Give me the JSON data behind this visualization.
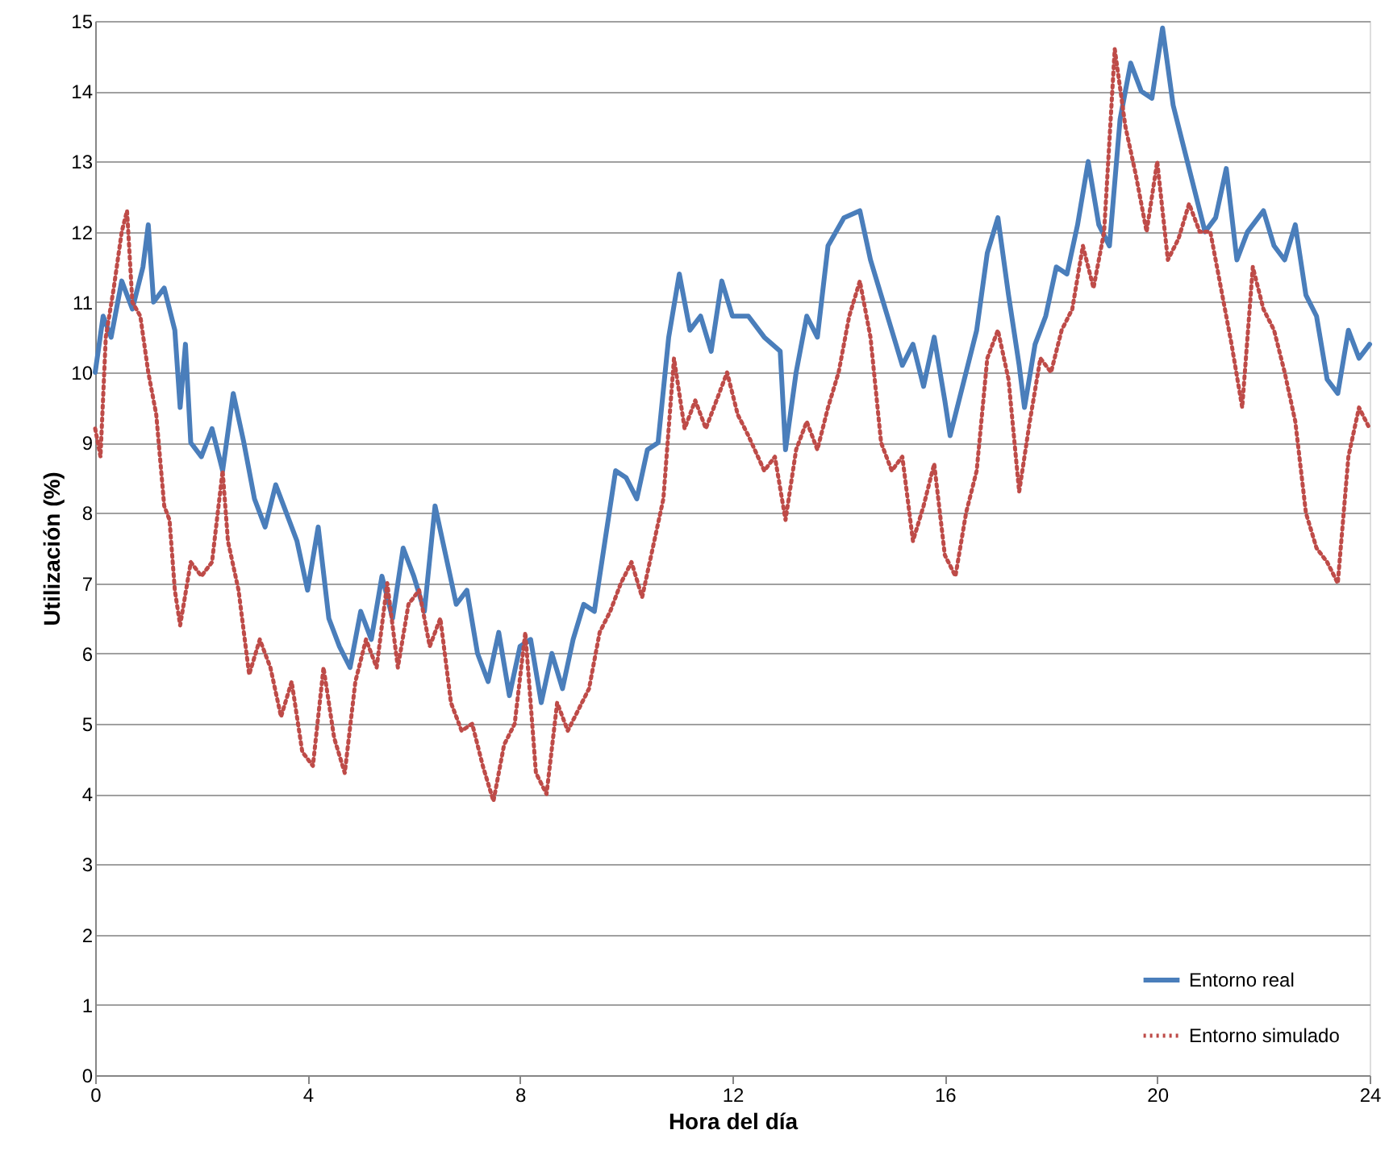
{
  "chart_data": {
    "type": "line",
    "xlabel": "Hora del día",
    "ylabel": "Utilización (%)",
    "xlim": [
      0,
      24
    ],
    "xticks": [
      0,
      4,
      8,
      12,
      16,
      20,
      24
    ],
    "ylim": [
      0,
      15
    ],
    "yticks": [
      0,
      1,
      2,
      3,
      4,
      5,
      6,
      7,
      8,
      9,
      10,
      11,
      12,
      13,
      14,
      15
    ],
    "grid": "y",
    "legend": "bottom right",
    "series": [
      {
        "name": "Entorno real",
        "color": "#4a7ebb",
        "line_style": "solid",
        "x": [
          0,
          0.15,
          0.3,
          0.5,
          0.7,
          0.9,
          1.0,
          1.1,
          1.3,
          1.5,
          1.6,
          1.7,
          1.8,
          2.0,
          2.2,
          2.4,
          2.6,
          2.8,
          3.0,
          3.2,
          3.4,
          3.6,
          3.8,
          4.0,
          4.2,
          4.4,
          4.6,
          4.8,
          5.0,
          5.2,
          5.4,
          5.6,
          5.8,
          6.0,
          6.2,
          6.4,
          6.6,
          6.8,
          7.0,
          7.2,
          7.4,
          7.6,
          7.8,
          8.0,
          8.2,
          8.4,
          8.6,
          8.8,
          9.0,
          9.2,
          9.4,
          9.6,
          9.8,
          10.0,
          10.2,
          10.4,
          10.6,
          10.8,
          11.0,
          11.2,
          11.4,
          11.6,
          11.8,
          12.0,
          12.3,
          12.6,
          12.9,
          13.0,
          13.2,
          13.4,
          13.6,
          13.8,
          14.1,
          14.4,
          14.6,
          14.8,
          15.0,
          15.2,
          15.4,
          15.6,
          15.8,
          16.0,
          16.1,
          16.4,
          16.6,
          16.8,
          17.0,
          17.2,
          17.4,
          17.5,
          17.7,
          17.9,
          18.1,
          18.3,
          18.5,
          18.7,
          18.9,
          19.1,
          19.3,
          19.5,
          19.7,
          19.9,
          20.1,
          20.3,
          20.5,
          20.7,
          20.9,
          21.1,
          21.3,
          21.5,
          21.7,
          22.0,
          22.2,
          22.4,
          22.6,
          22.8,
          23.0,
          23.2,
          23.4,
          23.6,
          23.8,
          24.0
        ],
        "values": [
          10.0,
          10.8,
          10.5,
          11.3,
          10.9,
          11.5,
          12.1,
          11.0,
          11.2,
          10.6,
          9.5,
          10.4,
          9.0,
          8.8,
          9.2,
          8.6,
          9.7,
          9.0,
          8.2,
          7.8,
          8.4,
          8.0,
          7.6,
          6.9,
          7.8,
          6.5,
          6.1,
          5.8,
          6.6,
          6.2,
          7.1,
          6.5,
          7.5,
          7.1,
          6.6,
          8.1,
          7.4,
          6.7,
          6.9,
          6.0,
          5.6,
          6.3,
          5.4,
          6.1,
          6.2,
          5.3,
          6.0,
          5.5,
          6.2,
          6.7,
          6.6,
          7.6,
          8.6,
          8.5,
          8.2,
          8.9,
          9.0,
          10.5,
          11.4,
          10.6,
          10.8,
          10.3,
          11.3,
          10.8,
          10.8,
          10.5,
          10.3,
          8.9,
          10.0,
          10.8,
          10.5,
          11.8,
          12.2,
          12.3,
          11.6,
          11.1,
          10.6,
          10.1,
          10.4,
          9.8,
          10.5,
          9.6,
          9.1,
          10.0,
          10.6,
          11.7,
          12.2,
          11.1,
          10.1,
          9.5,
          10.4,
          10.8,
          11.5,
          11.4,
          12.1,
          13.0,
          12.1,
          11.8,
          13.6,
          14.4,
          14.0,
          13.9,
          14.9,
          13.8,
          13.2,
          12.6,
          12.0,
          12.2,
          12.9,
          11.6,
          12.0,
          12.3,
          11.8,
          11.6,
          12.1,
          11.1,
          10.8,
          9.9,
          9.7,
          10.6,
          10.2,
          10.4
        ]
      },
      {
        "name": "Entorno simulado",
        "color": "#be4b48",
        "line_style": "dotted",
        "x": [
          0,
          0.1,
          0.2,
          0.35,
          0.5,
          0.6,
          0.7,
          0.85,
          1.0,
          1.15,
          1.3,
          1.4,
          1.5,
          1.6,
          1.8,
          2.0,
          2.2,
          2.4,
          2.5,
          2.7,
          2.9,
          3.1,
          3.3,
          3.5,
          3.7,
          3.9,
          4.1,
          4.3,
          4.5,
          4.7,
          4.9,
          5.1,
          5.3,
          5.5,
          5.7,
          5.9,
          6.1,
          6.3,
          6.5,
          6.7,
          6.9,
          7.1,
          7.3,
          7.5,
          7.7,
          7.9,
          8.1,
          8.3,
          8.5,
          8.7,
          8.9,
          9.1,
          9.3,
          9.5,
          9.7,
          9.9,
          10.1,
          10.3,
          10.5,
          10.7,
          10.9,
          11.1,
          11.3,
          11.5,
          11.7,
          11.9,
          12.1,
          12.3,
          12.6,
          12.8,
          13.0,
          13.2,
          13.4,
          13.6,
          13.8,
          14.0,
          14.2,
          14.4,
          14.6,
          14.8,
          15.0,
          15.2,
          15.4,
          15.6,
          15.8,
          16.0,
          16.2,
          16.4,
          16.6,
          16.8,
          17.0,
          17.2,
          17.4,
          17.6,
          17.8,
          18.0,
          18.2,
          18.4,
          18.6,
          18.8,
          19.0,
          19.2,
          19.4,
          19.6,
          19.8,
          20.0,
          20.2,
          20.4,
          20.6,
          20.8,
          21.0,
          21.2,
          21.4,
          21.6,
          21.8,
          22.0,
          22.2,
          22.4,
          22.6,
          22.8,
          23.0,
          23.2,
          23.4,
          23.6,
          23.8,
          24.0
        ],
        "values": [
          9.2,
          8.8,
          10.5,
          11.2,
          12.0,
          12.3,
          11.0,
          10.8,
          10.0,
          9.4,
          8.1,
          7.9,
          6.9,
          6.4,
          7.3,
          7.1,
          7.3,
          8.6,
          7.6,
          6.9,
          5.7,
          6.2,
          5.8,
          5.1,
          5.6,
          4.6,
          4.4,
          5.8,
          4.8,
          4.3,
          5.6,
          6.2,
          5.8,
          7.0,
          5.8,
          6.7,
          6.9,
          6.1,
          6.5,
          5.3,
          4.9,
          5.0,
          4.4,
          3.9,
          4.7,
          5.0,
          6.3,
          4.3,
          4.0,
          5.3,
          4.9,
          5.2,
          5.5,
          6.3,
          6.6,
          7.0,
          7.3,
          6.8,
          7.5,
          8.2,
          10.2,
          9.2,
          9.6,
          9.2,
          9.6,
          10.0,
          9.4,
          9.1,
          8.6,
          8.8,
          7.9,
          8.9,
          9.3,
          8.9,
          9.5,
          10.0,
          10.8,
          11.3,
          10.5,
          9.0,
          8.6,
          8.8,
          7.6,
          8.1,
          8.7,
          7.4,
          7.1,
          8.0,
          8.6,
          10.2,
          10.6,
          9.9,
          8.3,
          9.3,
          10.2,
          10.0,
          10.6,
          10.9,
          11.8,
          11.2,
          12.0,
          14.6,
          13.5,
          12.8,
          12.0,
          13.0,
          11.6,
          11.9,
          12.4,
          12.0,
          12.0,
          11.2,
          10.4,
          9.5,
          11.5,
          10.9,
          10.6,
          10.0,
          9.3,
          8.0,
          7.5,
          7.3,
          7.0,
          8.8,
          9.5,
          9.2
        ]
      }
    ]
  }
}
